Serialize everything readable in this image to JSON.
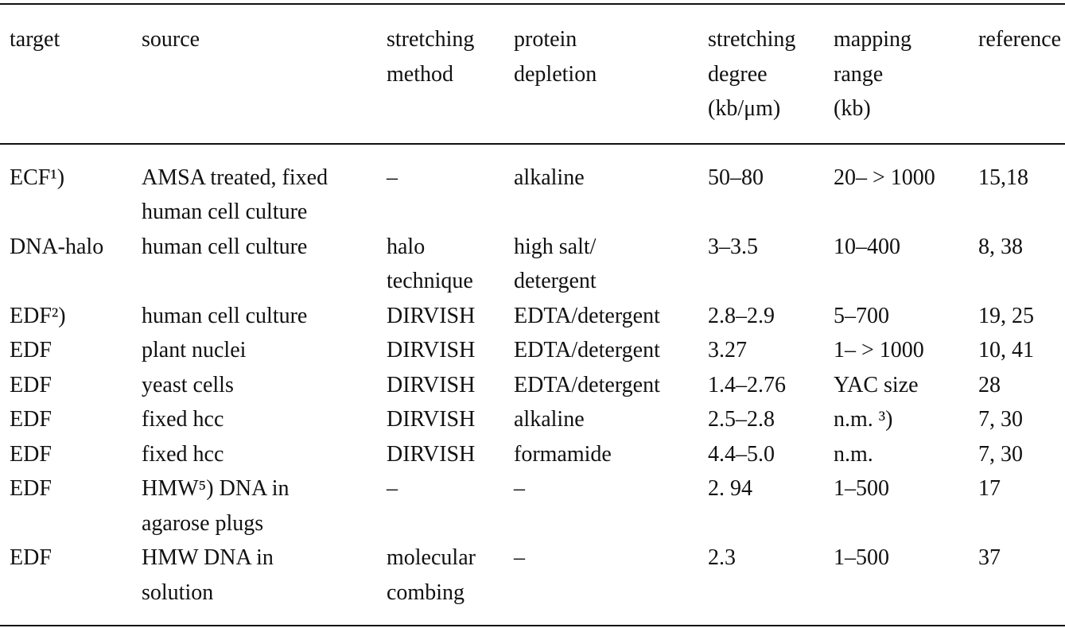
{
  "table": {
    "header": [
      [
        "target"
      ],
      [
        "source"
      ],
      [
        "stretching",
        "method"
      ],
      [
        "protein",
        "depletion"
      ],
      [
        "stretching",
        "degree",
        "(kb/μm)"
      ],
      [
        "mapping",
        "range",
        "(kb)"
      ],
      [
        "reference"
      ]
    ],
    "rows": [
      [
        [
          "ECF¹)"
        ],
        [
          "AMSA treated, fixed",
          "human cell culture"
        ],
        [
          "–"
        ],
        [
          "alkaline"
        ],
        [
          "50–80"
        ],
        [
          "20– > 1000"
        ],
        [
          "15,18"
        ]
      ],
      [
        [
          "DNA-halo"
        ],
        [
          "human cell culture"
        ],
        [
          "halo",
          "technique"
        ],
        [
          "high salt/",
          "detergent"
        ],
        [
          "3–3.5"
        ],
        [
          "10–400"
        ],
        [
          "8, 38"
        ]
      ],
      [
        [
          "EDF²)"
        ],
        [
          "human cell culture"
        ],
        [
          "DIRVISH"
        ],
        [
          "EDTA/detergent"
        ],
        [
          "2.8–2.9"
        ],
        [
          "5–700"
        ],
        [
          "19, 25"
        ]
      ],
      [
        [
          "EDF"
        ],
        [
          "plant nuclei"
        ],
        [
          "DIRVISH"
        ],
        [
          "EDTA/detergent"
        ],
        [
          "3.27"
        ],
        [
          "1– > 1000"
        ],
        [
          "10, 41"
        ]
      ],
      [
        [
          "EDF"
        ],
        [
          "yeast cells"
        ],
        [
          "DIRVISH"
        ],
        [
          "EDTA/detergent"
        ],
        [
          "1.4–2.76"
        ],
        [
          "YAC size"
        ],
        [
          "28"
        ]
      ],
      [
        [
          "EDF"
        ],
        [
          "fixed hcc"
        ],
        [
          "DIRVISH"
        ],
        [
          "alkaline"
        ],
        [
          "2.5–2.8"
        ],
        [
          "n.m. ³)"
        ],
        [
          "7, 30"
        ]
      ],
      [
        [
          "EDF"
        ],
        [
          "fixed hcc"
        ],
        [
          "DIRVISH"
        ],
        [
          "formamide"
        ],
        [
          "4.4–5.0"
        ],
        [
          "n.m."
        ],
        [
          "7, 30"
        ]
      ],
      [
        [
          "EDF"
        ],
        [
          "HMW⁵) DNA in",
          "agarose plugs"
        ],
        [
          "–"
        ],
        [
          "–"
        ],
        [
          "2. 94"
        ],
        [
          "1–500"
        ],
        [
          "17"
        ]
      ],
      [
        [
          "EDF"
        ],
        [
          "HMW DNA in",
          "solution"
        ],
        [
          "molecular",
          "combing"
        ],
        [
          "–"
        ],
        [
          "2.3"
        ],
        [
          "1–500"
        ],
        [
          "37"
        ]
      ]
    ]
  }
}
